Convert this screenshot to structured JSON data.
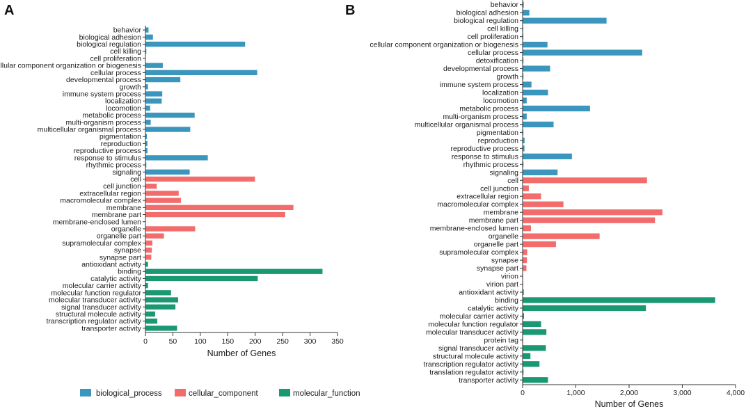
{
  "colors": {
    "biological_process": "#3a96bd",
    "cellular_component": "#f36c6c",
    "molecular_function": "#1a9872"
  },
  "legend": [
    {
      "key": "biological_process",
      "label": "biological_process"
    },
    {
      "key": "cellular_component",
      "label": "cellular_component"
    },
    {
      "key": "molecular_function",
      "label": "molecular_function"
    }
  ],
  "chart_data": [
    {
      "panel": "A",
      "type": "bar",
      "orientation": "horizontal",
      "xlabel": "Number of Genes",
      "xlim": [
        0,
        350
      ],
      "xticks": [
        0,
        50,
        100,
        150,
        200,
        250,
        300,
        350
      ],
      "xtick_labels": [
        "0",
        "50",
        "100",
        "150",
        "200",
        "250",
        "300",
        "350"
      ],
      "categories": [
        {
          "label": "behavior",
          "value": 5,
          "group": "biological_process"
        },
        {
          "label": "biological adhesion",
          "value": 13,
          "group": "biological_process"
        },
        {
          "label": "biological regulation",
          "value": 181,
          "group": "biological_process"
        },
        {
          "label": "cell killing",
          "value": 1,
          "group": "biological_process"
        },
        {
          "label": "cell proliferation",
          "value": 0,
          "group": "biological_process"
        },
        {
          "label": "cellular component organization or biogenesis",
          "value": 31,
          "group": "biological_process"
        },
        {
          "label": "cellular process",
          "value": 203,
          "group": "biological_process"
        },
        {
          "label": "developmental process",
          "value": 63,
          "group": "biological_process"
        },
        {
          "label": "growth",
          "value": 4,
          "group": "biological_process"
        },
        {
          "label": "immune system process",
          "value": 30,
          "group": "biological_process"
        },
        {
          "label": "localization",
          "value": 29,
          "group": "biological_process"
        },
        {
          "label": "locomotion",
          "value": 8,
          "group": "biological_process"
        },
        {
          "label": "metabolic process",
          "value": 89,
          "group": "biological_process"
        },
        {
          "label": "multi-organism process",
          "value": 9,
          "group": "biological_process"
        },
        {
          "label": "multicellular organismal process",
          "value": 81,
          "group": "biological_process"
        },
        {
          "label": "pigmentation",
          "value": 2,
          "group": "biological_process"
        },
        {
          "label": "reproduction",
          "value": 3,
          "group": "biological_process"
        },
        {
          "label": "reproductive process",
          "value": 3,
          "group": "biological_process"
        },
        {
          "label": "response to stimulus",
          "value": 113,
          "group": "biological_process"
        },
        {
          "label": "rhythmic process",
          "value": 1,
          "group": "biological_process"
        },
        {
          "label": "signaling",
          "value": 80,
          "group": "biological_process"
        },
        {
          "label": "cell",
          "value": 199,
          "group": "cellular_component"
        },
        {
          "label": "cell junction",
          "value": 20,
          "group": "cellular_component"
        },
        {
          "label": "extracellular region",
          "value": 60,
          "group": "cellular_component"
        },
        {
          "label": "macromolecular complex",
          "value": 64,
          "group": "cellular_component"
        },
        {
          "label": "membrane",
          "value": 269,
          "group": "cellular_component"
        },
        {
          "label": "membrane part",
          "value": 254,
          "group": "cellular_component"
        },
        {
          "label": "membrane-enclosed lumen",
          "value": 0,
          "group": "cellular_component"
        },
        {
          "label": "organelle",
          "value": 90,
          "group": "cellular_component"
        },
        {
          "label": "organelle part",
          "value": 33,
          "group": "cellular_component"
        },
        {
          "label": "supramolecular complex",
          "value": 12,
          "group": "cellular_component"
        },
        {
          "label": "synapse",
          "value": 11,
          "group": "cellular_component"
        },
        {
          "label": "synapse part",
          "value": 10,
          "group": "cellular_component"
        },
        {
          "label": "antioxidant activity",
          "value": 4,
          "group": "molecular_function"
        },
        {
          "label": "binding",
          "value": 322,
          "group": "molecular_function"
        },
        {
          "label": "catalytic activity",
          "value": 204,
          "group": "molecular_function"
        },
        {
          "label": "molecular carrier activity",
          "value": 4,
          "group": "molecular_function"
        },
        {
          "label": "molecular function regulator",
          "value": 46,
          "group": "molecular_function"
        },
        {
          "label": "molecular transducer activity",
          "value": 59,
          "group": "molecular_function"
        },
        {
          "label": "signal transducer activity",
          "value": 54,
          "group": "molecular_function"
        },
        {
          "label": "structural molecule activity",
          "value": 17,
          "group": "molecular_function"
        },
        {
          "label": "transcription regulator activity",
          "value": 21,
          "group": "molecular_function"
        },
        {
          "label": "transporter activity",
          "value": 57,
          "group": "molecular_function"
        }
      ]
    },
    {
      "panel": "B",
      "type": "bar",
      "orientation": "horizontal",
      "xlabel": "Number of Genes",
      "xlim": [
        0,
        4000
      ],
      "xticks": [
        0,
        1000,
        2000,
        3000,
        4000
      ],
      "xtick_labels": [
        "0",
        "1,000",
        "2,000",
        "3,000",
        "4,000"
      ],
      "categories": [
        {
          "label": "behavior",
          "value": 15,
          "group": "biological_process"
        },
        {
          "label": "biological adhesion",
          "value": 120,
          "group": "biological_process"
        },
        {
          "label": "biological regulation",
          "value": 1570,
          "group": "biological_process"
        },
        {
          "label": "cell killing",
          "value": 5,
          "group": "biological_process"
        },
        {
          "label": "cell proliferation",
          "value": 8,
          "group": "biological_process"
        },
        {
          "label": "cellular component organization or biogenesis",
          "value": 460,
          "group": "biological_process"
        },
        {
          "label": "cellular process",
          "value": 2240,
          "group": "biological_process"
        },
        {
          "label": "detoxification",
          "value": 10,
          "group": "biological_process"
        },
        {
          "label": "developmental process",
          "value": 510,
          "group": "biological_process"
        },
        {
          "label": "growth",
          "value": 10,
          "group": "biological_process"
        },
        {
          "label": "immune system process",
          "value": 160,
          "group": "biological_process"
        },
        {
          "label": "localization",
          "value": 470,
          "group": "biological_process"
        },
        {
          "label": "locomotion",
          "value": 70,
          "group": "biological_process"
        },
        {
          "label": "metabolic process",
          "value": 1260,
          "group": "biological_process"
        },
        {
          "label": "multi-organism process",
          "value": 70,
          "group": "biological_process"
        },
        {
          "label": "multicellular organismal process",
          "value": 575,
          "group": "biological_process"
        },
        {
          "label": "pigmentation",
          "value": 8,
          "group": "biological_process"
        },
        {
          "label": "reproduction",
          "value": 30,
          "group": "biological_process"
        },
        {
          "label": "reproductive process",
          "value": 28,
          "group": "biological_process"
        },
        {
          "label": "response to stimulus",
          "value": 920,
          "group": "biological_process"
        },
        {
          "label": "rhythmic process",
          "value": 10,
          "group": "biological_process"
        },
        {
          "label": "signaling",
          "value": 650,
          "group": "biological_process"
        },
        {
          "label": "cell",
          "value": 2330,
          "group": "cellular_component"
        },
        {
          "label": "cell junction",
          "value": 110,
          "group": "cellular_component"
        },
        {
          "label": "extracellular region",
          "value": 340,
          "group": "cellular_component"
        },
        {
          "label": "macromolecular complex",
          "value": 760,
          "group": "cellular_component"
        },
        {
          "label": "membrane",
          "value": 2620,
          "group": "cellular_component"
        },
        {
          "label": "membrane part",
          "value": 2480,
          "group": "cellular_component"
        },
        {
          "label": "membrane-enclosed lumen",
          "value": 150,
          "group": "cellular_component"
        },
        {
          "label": "organelle",
          "value": 1440,
          "group": "cellular_component"
        },
        {
          "label": "organelle part",
          "value": 620,
          "group": "cellular_component"
        },
        {
          "label": "supramolecular complex",
          "value": 80,
          "group": "cellular_component"
        },
        {
          "label": "synapse",
          "value": 75,
          "group": "cellular_component"
        },
        {
          "label": "synapse part",
          "value": 65,
          "group": "cellular_component"
        },
        {
          "label": "virion",
          "value": 3,
          "group": "cellular_component"
        },
        {
          "label": "virion part",
          "value": 3,
          "group": "cellular_component"
        },
        {
          "label": "antioxidant activity",
          "value": 15,
          "group": "molecular_function"
        },
        {
          "label": "binding",
          "value": 3610,
          "group": "molecular_function"
        },
        {
          "label": "catalytic activity",
          "value": 2310,
          "group": "molecular_function"
        },
        {
          "label": "molecular carrier activity",
          "value": 20,
          "group": "molecular_function"
        },
        {
          "label": "molecular function regulator",
          "value": 340,
          "group": "molecular_function"
        },
        {
          "label": "molecular transducer activity",
          "value": 440,
          "group": "molecular_function"
        },
        {
          "label": "protein tag",
          "value": 3,
          "group": "molecular_function"
        },
        {
          "label": "signal transducer activity",
          "value": 430,
          "group": "molecular_function"
        },
        {
          "label": "structural molecule activity",
          "value": 140,
          "group": "molecular_function"
        },
        {
          "label": "transcription regulator activity",
          "value": 310,
          "group": "molecular_function"
        },
        {
          "label": "translation regulator activity",
          "value": 10,
          "group": "molecular_function"
        },
        {
          "label": "transporter activity",
          "value": 470,
          "group": "molecular_function"
        }
      ]
    }
  ]
}
